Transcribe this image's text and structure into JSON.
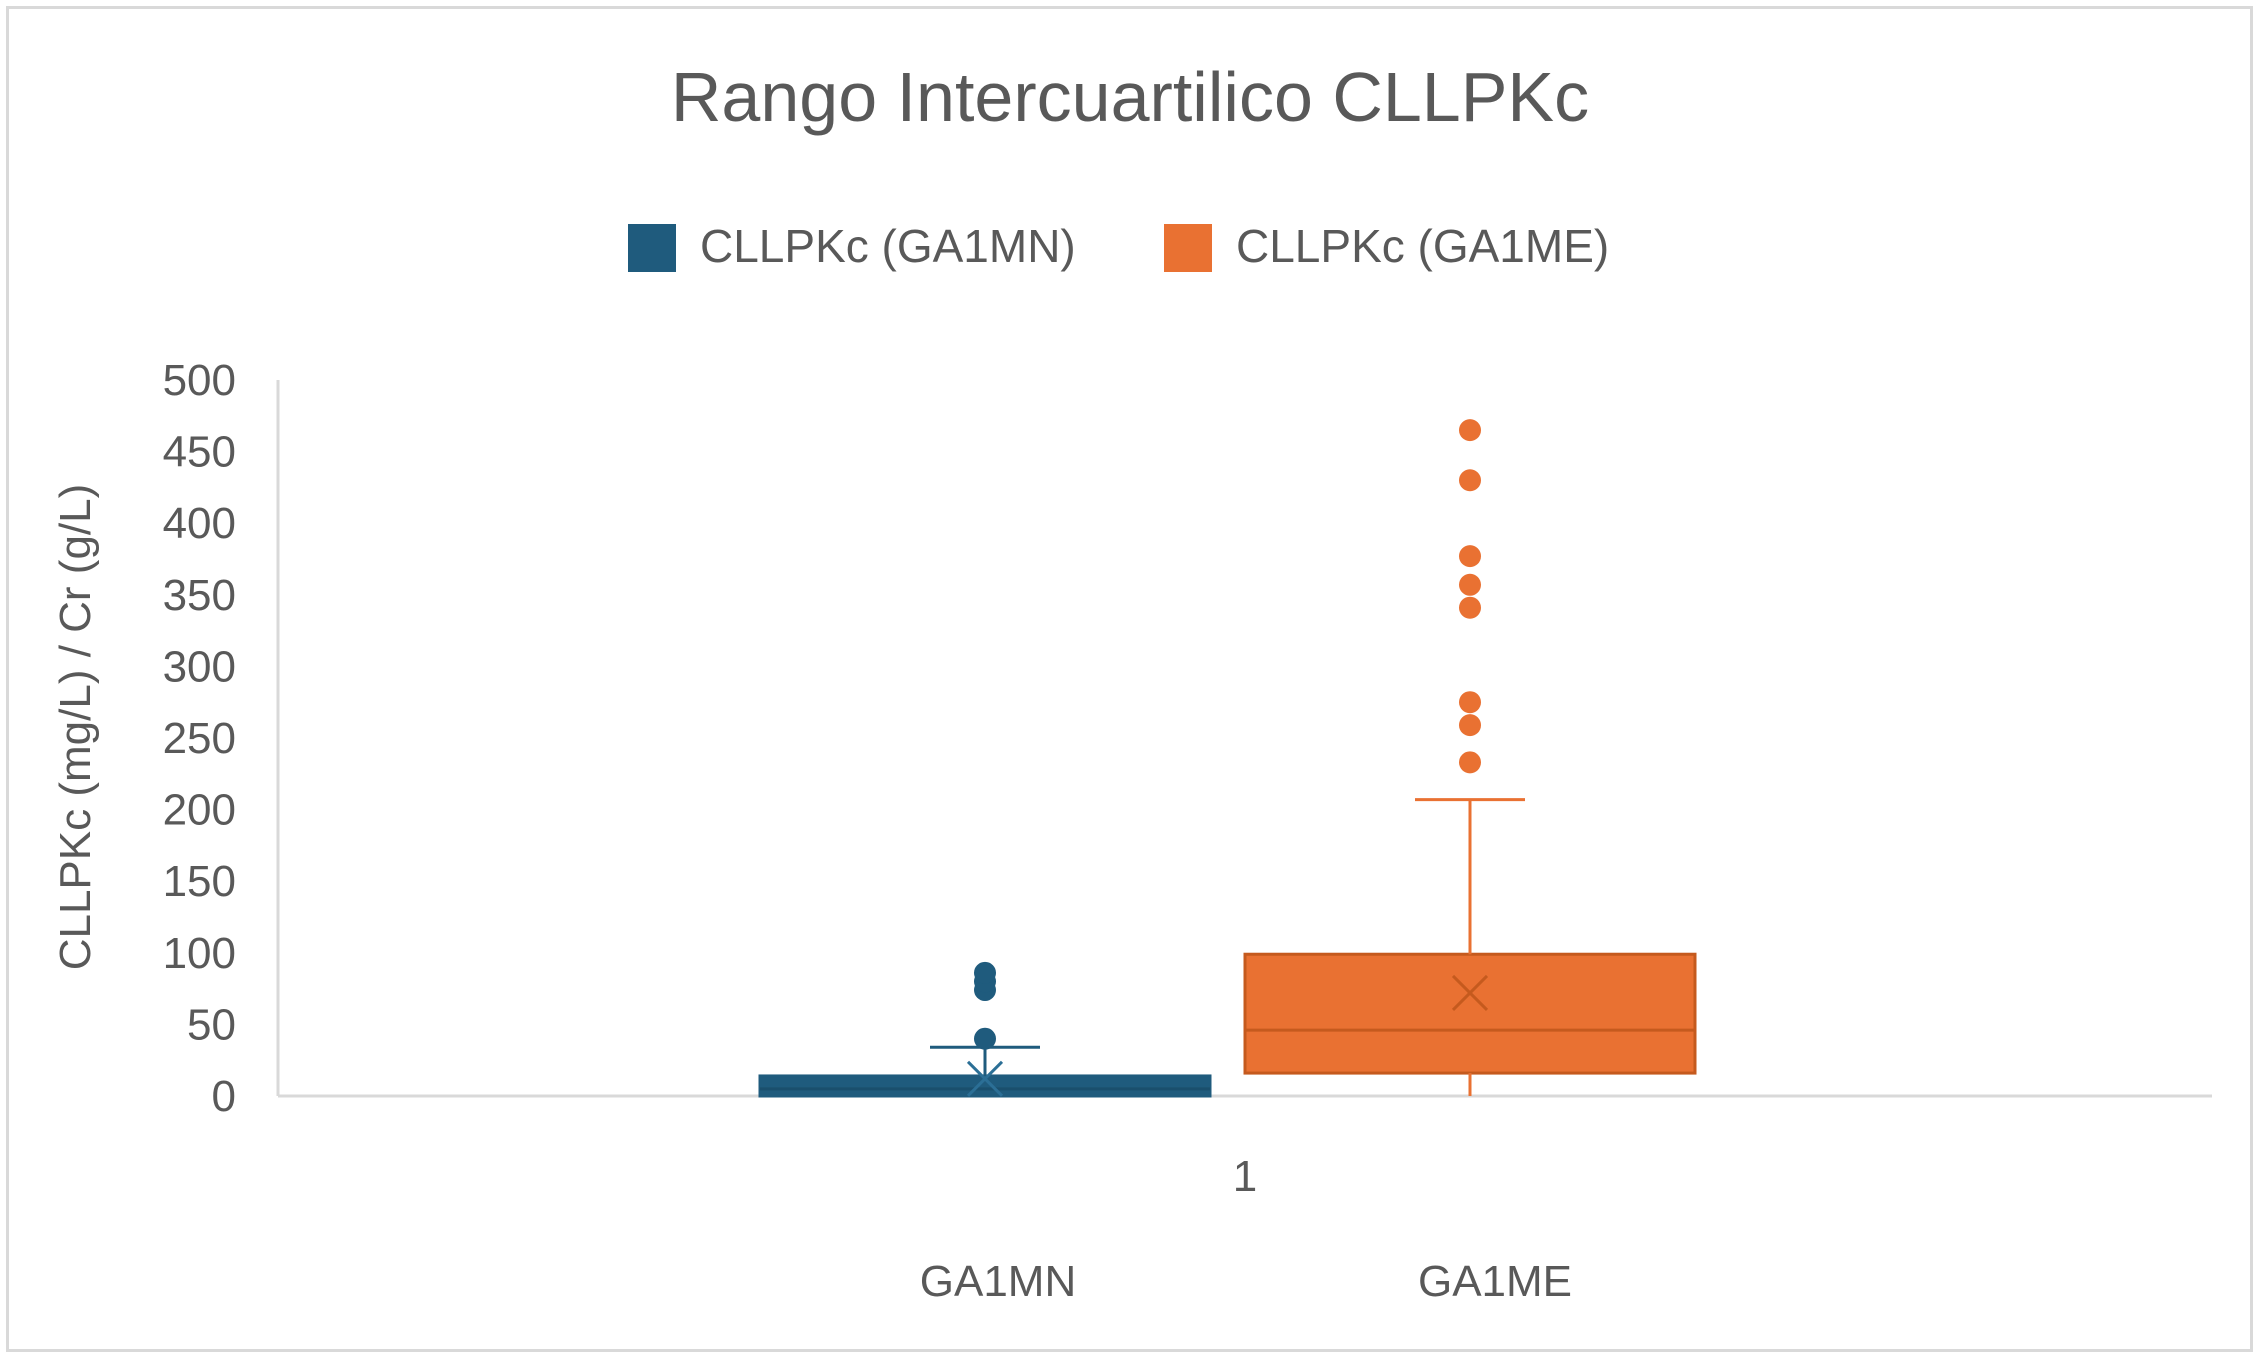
{
  "chart_data": {
    "type": "box",
    "title": "Rango Intercuartilico  CLLPKc",
    "ylabel": "CLLPKc (mg/L) / Cr (g/L)",
    "xlabel": "",
    "x_category": "1",
    "group_labels": [
      "GA1MN",
      "GA1ME"
    ],
    "ylim": [
      0,
      500
    ],
    "yticks": [
      0,
      50,
      100,
      150,
      200,
      250,
      300,
      350,
      400,
      450,
      500
    ],
    "legend_position": "top",
    "grid": false,
    "series": [
      {
        "name": "CLLPKc (GA1MN)",
        "color": "#1f5b7d",
        "min": 0,
        "q1": 0,
        "median": 5,
        "q3": 14,
        "max": 34,
        "mean": 12,
        "outliers": [
          40,
          74,
          80,
          86
        ]
      },
      {
        "name": "CLLPKc (GA1ME)",
        "color": "#e97132",
        "min": 0,
        "q1": 16,
        "median": 46,
        "q3": 99,
        "max": 207,
        "mean": 72,
        "outliers": [
          233,
          259,
          275,
          341,
          357,
          377,
          430,
          465
        ]
      }
    ]
  }
}
